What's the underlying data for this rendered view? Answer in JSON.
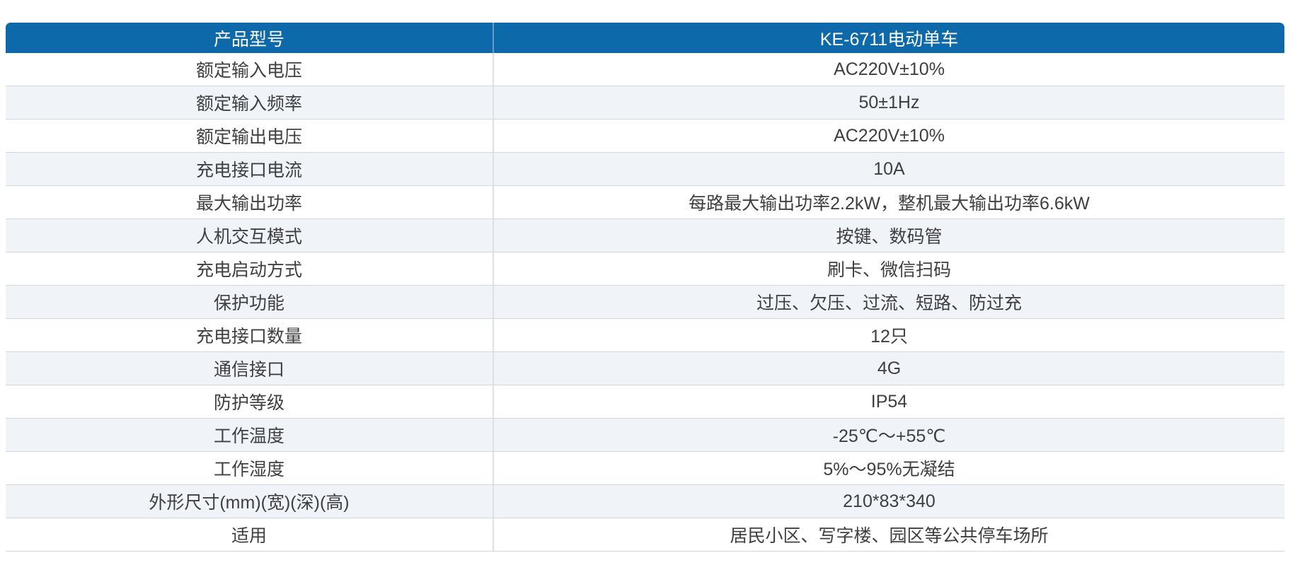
{
  "table": {
    "header": {
      "col1": "产品型号",
      "col2": "KE-6711电动单车"
    },
    "rows": [
      {
        "label": "额定输入电压",
        "value": "AC220V±10%"
      },
      {
        "label": "额定输入频率",
        "value": "50±1Hz"
      },
      {
        "label": "额定输出电压",
        "value": "AC220V±10%"
      },
      {
        "label": "充电接口电流",
        "value": "10A"
      },
      {
        "label": "最大输出功率",
        "value": "每路最大输出功率2.2kW，整机最大输出功率6.6kW"
      },
      {
        "label": "人机交互模式",
        "value": "按键、数码管"
      },
      {
        "label": "充电启动方式",
        "value": "刷卡、微信扫码"
      },
      {
        "label": "保护功能",
        "value": "过压、欠压、过流、短路、防过充"
      },
      {
        "label": "充电接口数量",
        "value": "12只"
      },
      {
        "label": "通信接口",
        "value": "4G"
      },
      {
        "label": "防护等级",
        "value": "IP54"
      },
      {
        "label": "工作温度",
        "value": "-25℃～+55℃"
      },
      {
        "label": "工作湿度",
        "value": "5%～95%无凝结"
      },
      {
        "label": "外形尺寸(mm)(宽)(深)(高)",
        "value": "210*83*340"
      },
      {
        "label": "适用",
        "value": "居民小区、写字楼、园区等公共停车场所"
      }
    ],
    "colors": {
      "header_bg": "#0d69a9",
      "header_text": "#ffffff",
      "stripe_bg": "#f0f3f8",
      "border": "#d2d6da",
      "divider": "#dde1e5",
      "text": "#3f3f42"
    }
  }
}
